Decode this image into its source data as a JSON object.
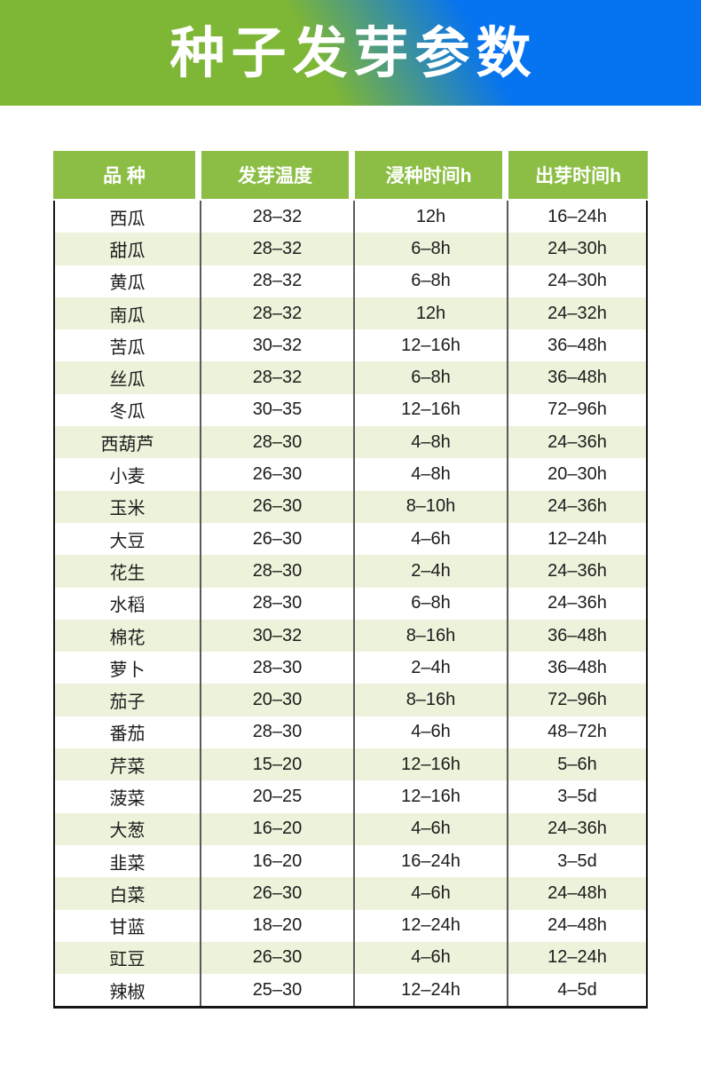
{
  "banner": {
    "title": "种子发芽参数",
    "gradient_left_color": "#7eb636",
    "gradient_right_color": "#0673f0",
    "title_color": "#ffffff"
  },
  "table": {
    "header_bg": "#8cbe45",
    "alt_row_bg": "#edf3db",
    "columns": [
      "品 种",
      "发芽温度",
      "浸种时间h",
      "出芽时间h"
    ],
    "rows": [
      [
        "西瓜",
        "28–32",
        "12h",
        "16–24h"
      ],
      [
        "甜瓜",
        "28–32",
        "6–8h",
        "24–30h"
      ],
      [
        "黄瓜",
        "28–32",
        "6–8h",
        "24–30h"
      ],
      [
        "南瓜",
        "28–32",
        "12h",
        "24–32h"
      ],
      [
        "苦瓜",
        "30–32",
        "12–16h",
        "36–48h"
      ],
      [
        "丝瓜",
        "28–32",
        "6–8h",
        "36–48h"
      ],
      [
        "冬瓜",
        "30–35",
        "12–16h",
        "72–96h"
      ],
      [
        "西葫芦",
        "28–30",
        "4–8h",
        "24–36h"
      ],
      [
        "小麦",
        "26–30",
        "4–8h",
        "20–30h"
      ],
      [
        "玉米",
        "26–30",
        "8–10h",
        "24–36h"
      ],
      [
        "大豆",
        "26–30",
        "4–6h",
        "12–24h"
      ],
      [
        "花生",
        "28–30",
        "2–4h",
        "24–36h"
      ],
      [
        "水稻",
        "28–30",
        "6–8h",
        "24–36h"
      ],
      [
        "棉花",
        "30–32",
        "8–16h",
        "36–48h"
      ],
      [
        "萝卜",
        "28–30",
        "2–4h",
        "36–48h"
      ],
      [
        "茄子",
        "20–30",
        "8–16h",
        "72–96h"
      ],
      [
        "番茄",
        "28–30",
        "4–6h",
        "48–72h"
      ],
      [
        "芹菜",
        "15–20",
        "12–16h",
        "5–6h"
      ],
      [
        "菠菜",
        "20–25",
        "12–16h",
        "3–5d"
      ],
      [
        "大葱",
        "16–20",
        "4–6h",
        "24–36h"
      ],
      [
        "韭菜",
        "16–20",
        "16–24h",
        "3–5d"
      ],
      [
        "白菜",
        "26–30",
        "4–6h",
        "24–48h"
      ],
      [
        "甘蓝",
        "18–20",
        "12–24h",
        "24–48h"
      ],
      [
        "豇豆",
        "26–30",
        "4–6h",
        "12–24h"
      ],
      [
        "辣椒",
        "25–30",
        "12–24h",
        "4–5d"
      ]
    ]
  }
}
